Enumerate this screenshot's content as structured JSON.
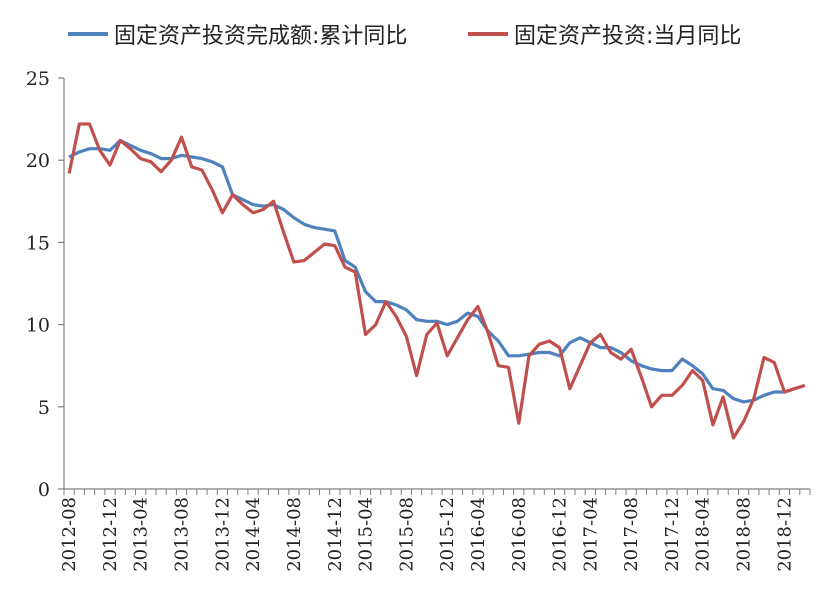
{
  "chart_data": {
    "type": "line",
    "title": "",
    "xlabel": "",
    "ylabel": "",
    "ylim": [
      0,
      25
    ],
    "yticks": [
      0,
      5,
      10,
      15,
      20,
      25
    ],
    "grid": false,
    "legend_position": "top",
    "x": [
      "2012-08",
      "2012-09",
      "2012-10",
      "2012-11",
      "2012-12",
      "2013-02",
      "2013-03",
      "2013-04",
      "2013-05",
      "2013-06",
      "2013-07",
      "2013-08",
      "2013-09",
      "2013-10",
      "2013-11",
      "2013-12",
      "2014-02",
      "2014-03",
      "2014-04",
      "2014-05",
      "2014-06",
      "2014-07",
      "2014-08",
      "2014-09",
      "2014-10",
      "2014-11",
      "2014-12",
      "2015-02",
      "2015-03",
      "2015-04",
      "2015-05",
      "2015-06",
      "2015-07",
      "2015-08",
      "2015-09",
      "2015-10",
      "2015-11",
      "2015-12",
      "2016-02",
      "2016-03",
      "2016-04",
      "2016-05",
      "2016-06",
      "2016-07",
      "2016-08",
      "2016-09",
      "2016-10",
      "2016-11",
      "2016-12",
      "2017-02",
      "2017-03",
      "2017-04",
      "2017-05",
      "2017-06",
      "2017-07",
      "2017-08",
      "2017-09",
      "2017-10",
      "2017-11",
      "2017-12",
      "2018-02",
      "2018-03",
      "2018-04",
      "2018-05",
      "2018-06",
      "2018-07",
      "2018-08",
      "2018-09",
      "2018-10",
      "2018-11",
      "2018-12",
      "2019-02",
      "2019-03"
    ],
    "xtick_labels": [
      "2012-08",
      "2012-12",
      "2013-04",
      "2013-08",
      "2013-12",
      "2014-04",
      "2014-08",
      "2014-12",
      "2015-04",
      "2015-08",
      "2015-12",
      "2016-04",
      "2016-08",
      "2016-12",
      "2017-04",
      "2017-08",
      "2017-12",
      "2018-04",
      "2018-08",
      "2018-12"
    ],
    "series": [
      {
        "name": "固定资产投资完成额:累计同比",
        "color": "#4f81bd",
        "values": [
          20.2,
          20.5,
          20.7,
          20.7,
          20.6,
          21.2,
          20.9,
          20.6,
          20.4,
          20.1,
          20.1,
          20.3,
          20.2,
          20.1,
          19.9,
          19.6,
          17.9,
          17.6,
          17.3,
          17.2,
          17.3,
          17.0,
          16.5,
          16.1,
          15.9,
          15.8,
          15.7,
          13.9,
          13.5,
          12.0,
          11.4,
          11.4,
          11.2,
          10.9,
          10.3,
          10.2,
          10.2,
          10.0,
          10.2,
          10.7,
          10.5,
          9.6,
          9.0,
          8.1,
          8.1,
          8.2,
          8.3,
          8.3,
          8.1,
          8.9,
          9.2,
          8.9,
          8.6,
          8.6,
          8.3,
          7.8,
          7.5,
          7.3,
          7.2,
          7.2,
          7.9,
          7.5,
          7.0,
          6.1,
          6.0,
          5.5,
          5.3,
          5.4,
          5.7,
          5.9,
          5.9,
          6.1,
          6.3
        ]
      },
      {
        "name": "固定资产投资:当月同比",
        "color": "#c0504d",
        "values": [
          19.2,
          22.2,
          22.2,
          20.6,
          19.7,
          21.2,
          20.7,
          20.1,
          19.9,
          19.3,
          20.0,
          21.4,
          19.6,
          19.4,
          18.2,
          16.8,
          17.9,
          17.3,
          16.8,
          17.0,
          17.5,
          15.6,
          13.8,
          13.9,
          14.4,
          14.9,
          14.8,
          13.5,
          13.2,
          9.4,
          10.0,
          11.4,
          10.5,
          9.3,
          6.9,
          9.4,
          10.1,
          8.1,
          9.2,
          10.3,
          11.1,
          9.5,
          7.5,
          7.4,
          4.0,
          8.1,
          8.8,
          9.0,
          8.6,
          6.1,
          7.5,
          8.9,
          9.4,
          8.3,
          7.9,
          8.5,
          6.8,
          5.0,
          5.7,
          5.7,
          6.3,
          7.2,
          6.6,
          3.9,
          5.6,
          3.1,
          4.1,
          5.5,
          8.0,
          7.7,
          5.9,
          6.1,
          6.3
        ]
      }
    ]
  }
}
